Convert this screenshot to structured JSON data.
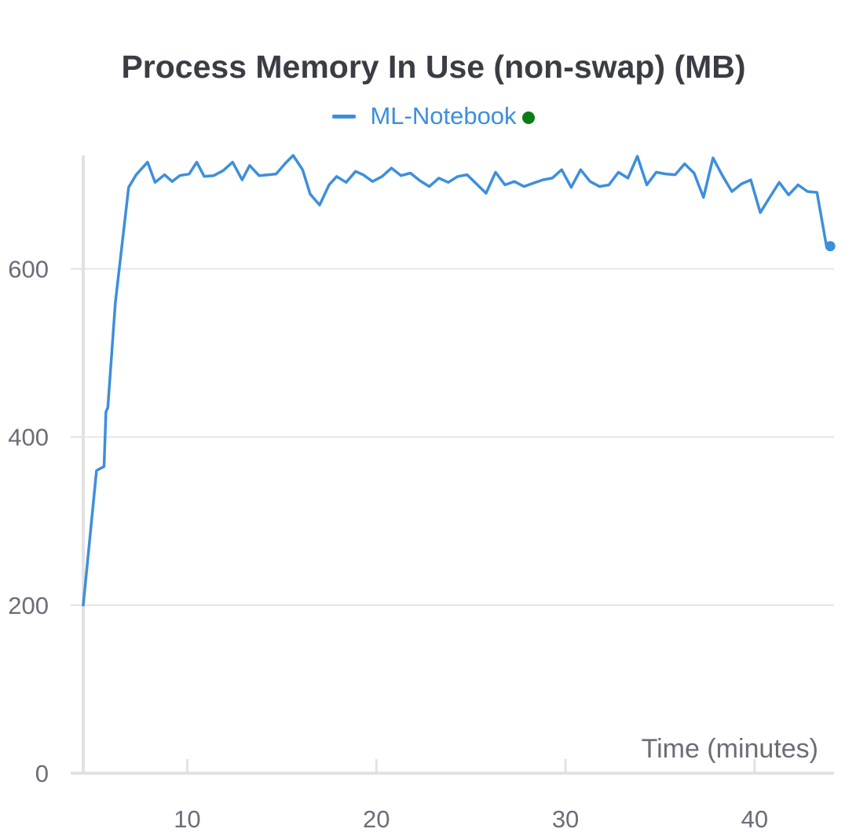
{
  "chart_data": {
    "type": "line",
    "title": "Process Memory In Use (non-swap) (MB)",
    "xlabel": "Time (minutes)",
    "ylabel": "",
    "xlim": [
      4.5,
      44.2
    ],
    "ylim": [
      0,
      735
    ],
    "xticks": [
      10,
      20,
      30,
      40
    ],
    "yticks": [
      0,
      200,
      400,
      600
    ],
    "grid": true,
    "legend": "top-center",
    "colors": {
      "series": "#3d8fdb",
      "legend_status": "#0a7d14",
      "grid": "#e6e6e6",
      "axis": "#e2e2e2"
    },
    "series": [
      {
        "name": "ML-Notebook",
        "x": [
          4.5,
          5.2,
          5.6,
          5.7,
          5.8,
          6.2,
          6.9,
          7.3,
          7.9,
          8.3,
          8.8,
          9.2,
          9.6,
          10.1,
          10.5,
          10.9,
          11.4,
          11.9,
          12.4,
          12.9,
          13.3,
          13.8,
          14.3,
          14.7,
          15.2,
          15.6,
          16.1,
          16.5,
          17.0,
          17.5,
          17.9,
          18.4,
          18.9,
          19.3,
          19.8,
          20.3,
          20.8,
          21.3,
          21.8,
          22.3,
          22.8,
          23.3,
          23.8,
          24.3,
          24.8,
          25.3,
          25.8,
          26.3,
          26.8,
          27.3,
          27.8,
          28.3,
          28.8,
          29.3,
          29.8,
          30.3,
          30.8,
          31.3,
          31.8,
          32.3,
          32.8,
          33.3,
          33.8,
          34.3,
          34.8,
          35.3,
          35.8,
          36.3,
          36.8,
          37.3,
          37.8,
          38.3,
          38.8,
          39.3,
          39.8,
          40.3,
          40.8,
          41.3,
          41.8,
          42.3,
          42.8,
          43.3,
          43.8,
          43.9,
          44.0
        ],
        "values": [
          200,
          360,
          365,
          430,
          435,
          560,
          697,
          712,
          727,
          703,
          712,
          704,
          711,
          713,
          727,
          710,
          711,
          717,
          727,
          706,
          723,
          711,
          712,
          713,
          726,
          735,
          718,
          689,
          676,
          700,
          710,
          703,
          716,
          712,
          704,
          710,
          720,
          711,
          714,
          705,
          698,
          708,
          703,
          710,
          712,
          701,
          690,
          715,
          700,
          704,
          698,
          702,
          706,
          708,
          718,
          697,
          718,
          704,
          698,
          700,
          715,
          708,
          734,
          700,
          715,
          713,
          712,
          725,
          714,
          685,
          732,
          711,
          692,
          701,
          706,
          667,
          685,
          703,
          688,
          700,
          692,
          691,
          627,
          627,
          627
        ]
      }
    ]
  }
}
